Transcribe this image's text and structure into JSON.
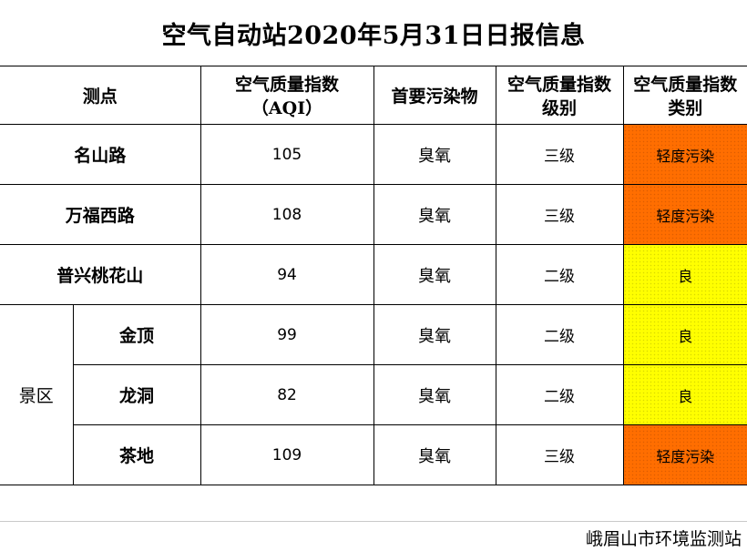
{
  "title": "空气自动站2020年5月31日日报信息",
  "headers": {
    "site": "测点",
    "aqi_line1": "空气质量指数",
    "aqi_line2": "（AQI）",
    "primary_pollutant": "首要污染物",
    "level_line1": "空气质量指数",
    "level_line2": "级别",
    "category_line1": "空气质量指数",
    "category_line2": "类别"
  },
  "rows": [
    {
      "site": "名山路",
      "aqi": "105",
      "pollutant": "臭氧",
      "level": "三级",
      "category": "轻度污染",
      "color": "#ff6e00"
    },
    {
      "site": "万福西路",
      "aqi": "108",
      "pollutant": "臭氧",
      "level": "三级",
      "category": "轻度污染",
      "color": "#ff6e00"
    },
    {
      "site": "普兴桃花山",
      "aqi": "94",
      "pollutant": "臭氧",
      "level": "二级",
      "category": "良",
      "color": "#ffff00"
    }
  ],
  "scenic": {
    "group_label": "景区",
    "rows": [
      {
        "site": "金顶",
        "aqi": "99",
        "pollutant": "臭氧",
        "level": "二级",
        "category": "良",
        "color": "#ffff00"
      },
      {
        "site": "龙洞",
        "aqi": "82",
        "pollutant": "臭氧",
        "level": "二级",
        "category": "良",
        "color": "#ffff00"
      },
      {
        "site": "茶地",
        "aqi": "109",
        "pollutant": "臭氧",
        "level": "三级",
        "category": "轻度污染",
        "color": "#ff6e00"
      }
    ]
  },
  "footer": "峨眉山市环境监测站"
}
